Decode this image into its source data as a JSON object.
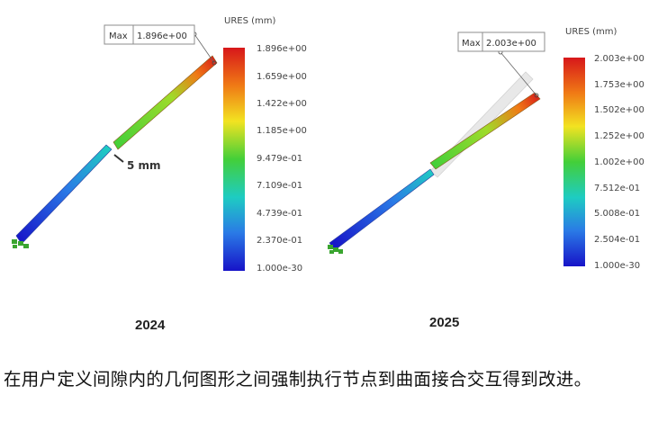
{
  "legend_colors": [
    "#d7171a",
    "#f07a15",
    "#f2e321",
    "#43cf39",
    "#1eccc2",
    "#2a7ae6",
    "#1713c8"
  ],
  "panels": [
    {
      "id": "2024",
      "year": "2024",
      "legend_title": "URES (mm)",
      "legend_ticks": [
        "1.896e+00",
        "1.659e+00",
        "1.422e+00",
        "1.185e+00",
        "9.479e-01",
        "7.109e-01",
        "4.739e-01",
        "2.370e-01",
        "1.000e-30"
      ],
      "max_label": "Max",
      "max_value": "1.896e+00",
      "gap_label": "5 mm"
    },
    {
      "id": "2025",
      "year": "2025",
      "legend_title": "URES (mm)",
      "legend_ticks": [
        "2.003e+00",
        "1.753e+00",
        "1.502e+00",
        "1.252e+00",
        "1.002e+00",
        "7.512e-01",
        "5.008e-01",
        "2.504e-01",
        "1.000e-30"
      ],
      "max_label": "Max",
      "max_value": "2.003e+00"
    }
  ],
  "caption": "在用户定义间隙内的几何图形之间强制执行节点到曲面接合交互得到改进。"
}
